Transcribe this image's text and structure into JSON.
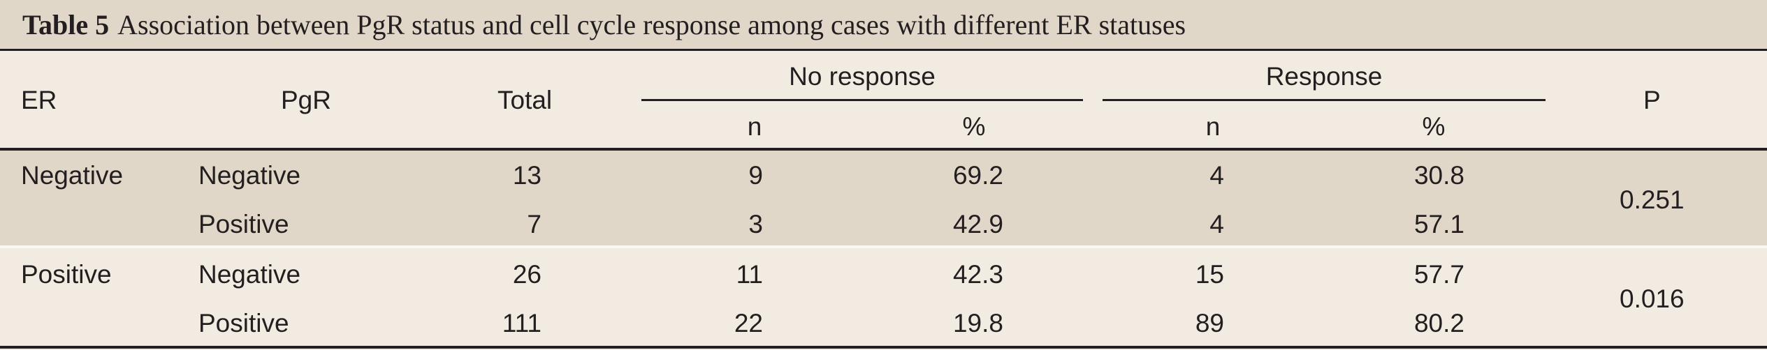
{
  "caption": {
    "label": "Table 5",
    "text": "Association between PgR status and cell cycle response among cases with different ER statuses"
  },
  "headers": {
    "er": "ER",
    "pgr": "PgR",
    "total": "Total",
    "no_response": "No response",
    "response": "Response",
    "p": "P",
    "n": "n",
    "pct": "%"
  },
  "groups": [
    {
      "er": "Negative",
      "p": "0.251",
      "rows": [
        {
          "pgr": "Negative",
          "total": "13",
          "no_n": "9",
          "no_pct": "69.2",
          "res_n": "4",
          "res_pct": "30.8"
        },
        {
          "pgr": "Positive",
          "total": "7",
          "no_n": "3",
          "no_pct": "42.9",
          "res_n": "4",
          "res_pct": "57.1"
        }
      ]
    },
    {
      "er": "Positive",
      "p": "0.016",
      "rows": [
        {
          "pgr": "Negative",
          "total": "26",
          "no_n": "11",
          "no_pct": "42.3",
          "res_n": "15",
          "res_pct": "57.7"
        },
        {
          "pgr": "Positive",
          "total": "111",
          "no_n": "22",
          "no_pct": "19.8",
          "res_n": "89",
          "res_pct": "80.2"
        }
      ]
    }
  ]
}
